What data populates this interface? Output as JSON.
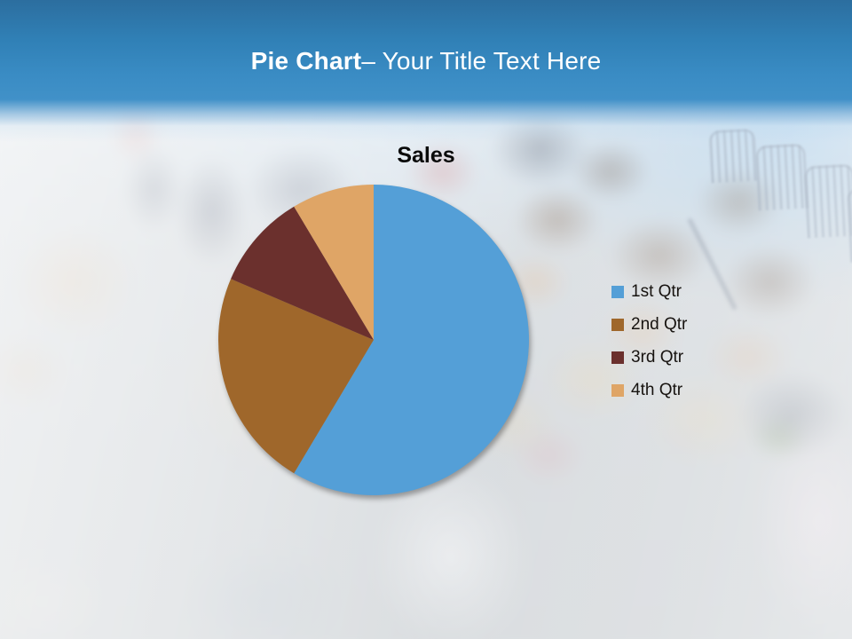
{
  "slide": {
    "title": {
      "bold": "Pie Chart",
      "rest": "– Your Title Text Here"
    }
  },
  "chart_data": {
    "type": "pie",
    "title": "Sales",
    "categories": [
      "1st Qtr",
      "2nd Qtr",
      "3rd Qtr",
      "4th Qtr"
    ],
    "values": [
      8.2,
      3.2,
      1.4,
      1.2
    ],
    "colors": [
      "#549FD7",
      "#9F672B",
      "#6B302D",
      "#DFA566"
    ],
    "start_angle_deg": 0,
    "direction": "clockwise",
    "legend_position": "right",
    "header_accent_color": "#3a8cc4",
    "title_color": "#ffffff"
  }
}
